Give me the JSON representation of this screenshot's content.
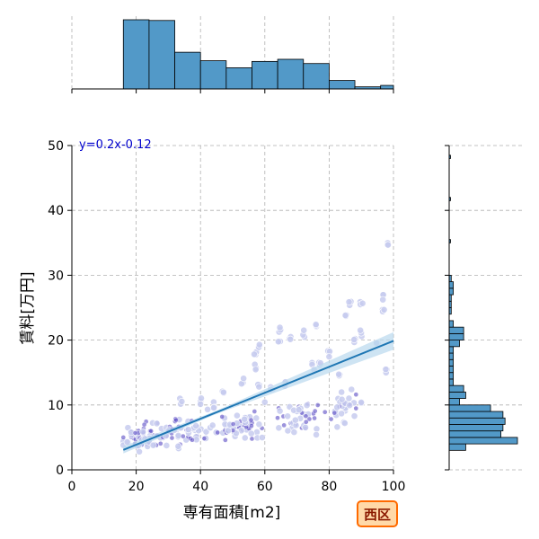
{
  "badge": {
    "text": "西区",
    "bg": "#ffd9a8",
    "border": "#ff6a00"
  },
  "colors": {
    "hist": "#5299c8",
    "line": "#1f77b4",
    "band": "#b9d9ee",
    "point_light": "#c7cbef",
    "point_dark": "#5a4bc4",
    "equation": "#0000cc"
  },
  "chart_data": {
    "type": "scatter",
    "title": "",
    "xlabel": "専有面積[m2]",
    "ylabel": "賃料[万円]",
    "xlim": [
      0,
      100
    ],
    "ylim": [
      0,
      50
    ],
    "xticks": [
      0,
      20,
      40,
      60,
      80,
      100
    ],
    "yticks": [
      0,
      10,
      20,
      30,
      40,
      50
    ],
    "grid": true,
    "annotation": "y=0.2x-0.12",
    "regression": {
      "slope": 0.2,
      "intercept": -0.12,
      "x_range": [
        16,
        100
      ],
      "confidence_band": true
    },
    "clusters_light": [
      {
        "x": 34,
        "y": 10.5
      },
      {
        "x": 47,
        "y": 11.8
      },
      {
        "x": 57,
        "y": 16
      },
      {
        "x": 57,
        "y": 17.8
      },
      {
        "x": 58,
        "y": 18.8
      },
      {
        "x": 64.5,
        "y": 20
      },
      {
        "x": 64.5,
        "y": 21.5
      },
      {
        "x": 68,
        "y": 20.5
      },
      {
        "x": 72,
        "y": 21
      },
      {
        "x": 76,
        "y": 22.5
      },
      {
        "x": 77,
        "y": 16.5
      },
      {
        "x": 83,
        "y": 14.5
      },
      {
        "x": 85,
        "y": 24
      },
      {
        "x": 86.5,
        "y": 25.5
      },
      {
        "x": 90,
        "y": 26
      },
      {
        "x": 90,
        "y": 21
      },
      {
        "x": 96.5,
        "y": 26.5
      },
      {
        "x": 97,
        "y": 25
      },
      {
        "x": 98,
        "y": 35
      },
      {
        "x": 98,
        "y": 15
      },
      {
        "x": 95,
        "y": 19
      },
      {
        "x": 88,
        "y": 20
      },
      {
        "x": 80,
        "y": 18
      },
      {
        "x": 75,
        "y": 16
      },
      {
        "x": 66,
        "y": 13
      },
      {
        "x": 62,
        "y": 12.5
      },
      {
        "x": 58,
        "y": 13
      },
      {
        "x": 53,
        "y": 13.5
      },
      {
        "x": 44,
        "y": 10
      },
      {
        "x": 40,
        "y": 10.5
      },
      {
        "x": 85,
        "y": 9.5
      },
      {
        "x": 82,
        "y": 9
      }
    ],
    "clusters_dense": [
      {
        "x": 22,
        "y": 5,
        "n": 55,
        "sx": 5,
        "sy": 1.7
      },
      {
        "x": 35,
        "y": 5.8,
        "n": 50,
        "sx": 6,
        "sy": 1.6
      },
      {
        "x": 52,
        "y": 6.5,
        "n": 55,
        "sx": 7,
        "sy": 1.7
      },
      {
        "x": 70,
        "y": 8,
        "n": 45,
        "sx": 7,
        "sy": 2.2
      },
      {
        "x": 86,
        "y": 10,
        "n": 25,
        "sx": 6,
        "sy": 2.2
      }
    ],
    "x_histogram": {
      "bin_edges": [
        0,
        8,
        16,
        24,
        32,
        40,
        48,
        56,
        64,
        72,
        80,
        88,
        96,
        104
      ],
      "counts": [
        0,
        0,
        98,
        97,
        52,
        40,
        30,
        39,
        42,
        36,
        12,
        3,
        5,
        0
      ]
    },
    "y_histogram": {
      "bin_edges": [
        3,
        4,
        5,
        6,
        7,
        8,
        9,
        10,
        11,
        12,
        13,
        14,
        15,
        16,
        17,
        18,
        19,
        20,
        21,
        22,
        23,
        24,
        25,
        26,
        27,
        28,
        29,
        30
      ],
      "counts": [
        8,
        33,
        25,
        26,
        27,
        26,
        20,
        5,
        8,
        7,
        2,
        2,
        2,
        2,
        2,
        2,
        5,
        7,
        7,
        2,
        0,
        1,
        1,
        1,
        2,
        2,
        1,
        1
      ]
    }
  }
}
